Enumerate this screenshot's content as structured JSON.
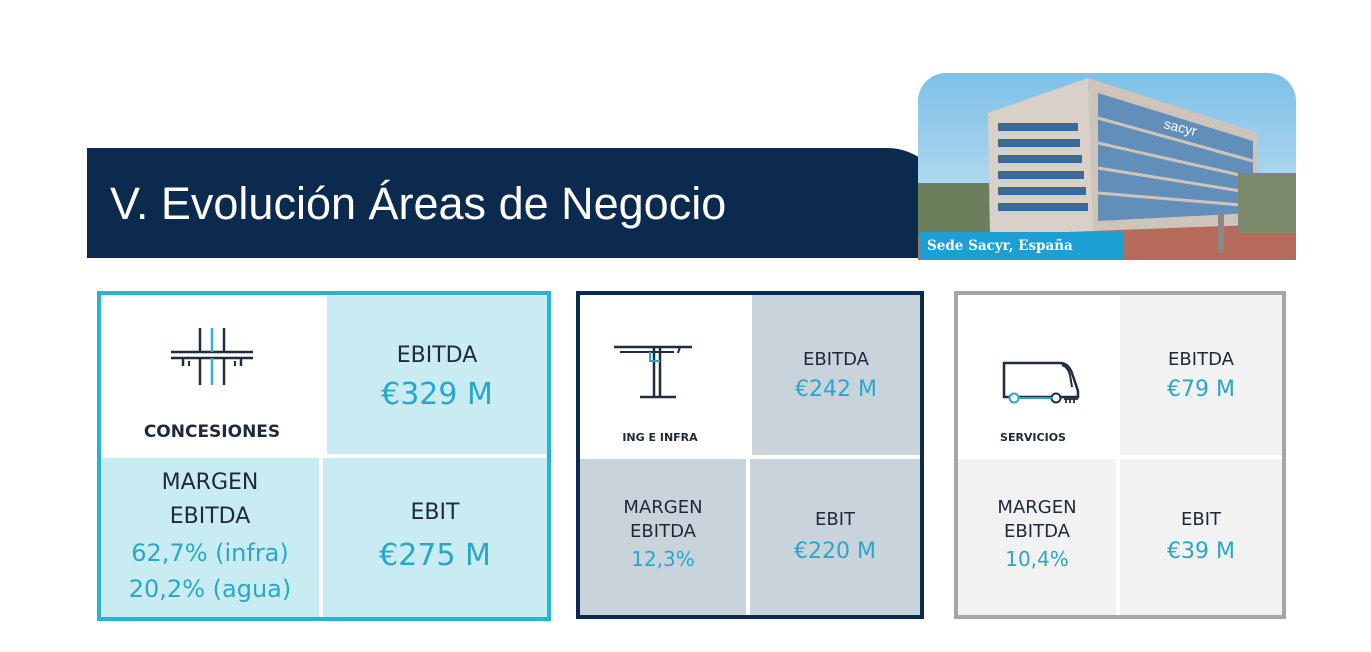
{
  "header": {
    "title": "V.    Evolución Áreas de Negocio",
    "photo_caption": "Sede Sacyr, España",
    "building_sign": "sacyr"
  },
  "panels": [
    {
      "area": "CONCESIONES",
      "icon": "bridge-icon",
      "ebitda_label": "EBITDA",
      "ebitda_value": "€329 M",
      "margin_label_1": "MARGEN",
      "margin_label_2": "EBITDA",
      "margin_value_1": "62,7% (infra)",
      "margin_value_2": "20,2% (agua)",
      "ebit_label": "EBIT",
      "ebit_value": "€275 M",
      "accent": "#29b3d2"
    },
    {
      "area": "ING E INFRA",
      "icon": "crane-icon",
      "ebitda_label": "EBITDA",
      "ebitda_value": "€242 M",
      "margin_label_1": "MARGEN",
      "margin_label_2": "EBITDA",
      "margin_value_1": "12,3%",
      "ebit_label": "EBIT",
      "ebit_value": "€220 M",
      "accent": "#0c2a4d"
    },
    {
      "area": "SERVICIOS",
      "icon": "truck-icon",
      "ebitda_label": "EBITDA",
      "ebitda_value": "€79 M",
      "margin_label_1": "MARGEN",
      "margin_label_2": "EBITDA",
      "margin_value_1": "10,4%",
      "ebit_label": "EBIT",
      "ebit_value": "€39 M",
      "accent": "#a6a6a6"
    }
  ]
}
